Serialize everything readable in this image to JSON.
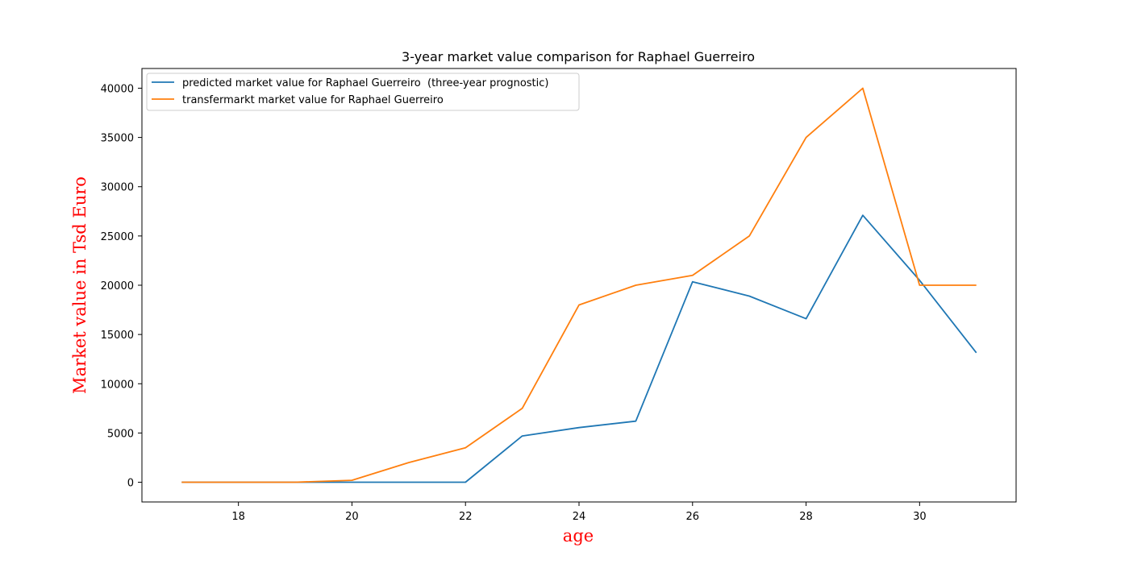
{
  "chart_data": {
    "type": "line",
    "title": "3-year market value comparison for Raphael Guerreiro",
    "xlabel": "age",
    "ylabel": "Market value in Tsd Euro",
    "xlim": [
      16.3,
      31.7
    ],
    "ylim": [
      -2000,
      42000
    ],
    "xticks": [
      18,
      20,
      22,
      24,
      26,
      28,
      30
    ],
    "yticks": [
      0,
      5000,
      10000,
      15000,
      20000,
      25000,
      30000,
      35000,
      40000
    ],
    "legend_position": "top-left",
    "grid": false,
    "x": [
      17,
      18,
      19,
      20,
      21,
      22,
      23,
      24,
      25,
      26,
      27,
      28,
      29,
      30,
      31
    ],
    "series": [
      {
        "name": "predicted market value for Raphael Guerreiro  (three-year prognostic)",
        "color": "#1f77b4",
        "values": [
          0,
          0,
          0,
          0,
          0,
          0,
          4700,
          5550,
          6200,
          20350,
          18900,
          16600,
          27100,
          20500,
          13150
        ]
      },
      {
        "name": "transfermarkt market value for Raphael Guerreiro",
        "color": "#ff7f0e",
        "values": [
          0,
          0,
          0,
          200,
          2000,
          3500,
          7500,
          18000,
          20000,
          21000,
          25000,
          35000,
          40000,
          20000,
          20000
        ]
      }
    ]
  }
}
